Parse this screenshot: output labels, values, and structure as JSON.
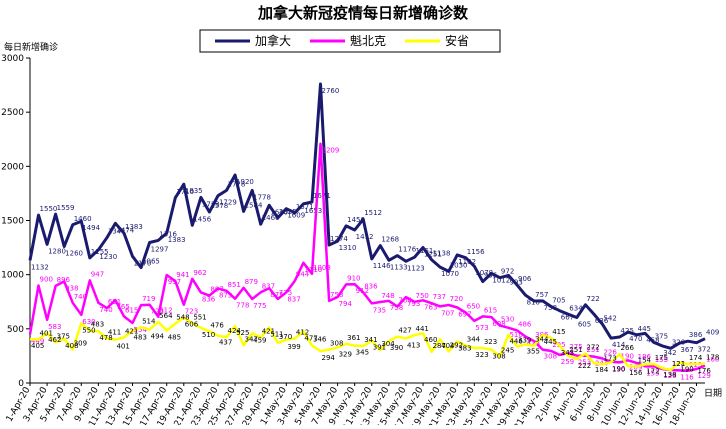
{
  "chart_data": {
    "type": "line",
    "title": "加拿大新冠疫情每日新增确诊数",
    "y_label": "每日新增确诊",
    "x_label": "日期",
    "categories": [
      "1-Apr-20",
      null,
      "3-Apr-20",
      null,
      "5-Apr-20",
      null,
      "7-Apr-20",
      null,
      "9-Apr-20",
      null,
      "11-Apr-20",
      null,
      "13-Apr-20",
      null,
      "15-Apr-20",
      null,
      "17-Apr-20",
      null,
      "19-Apr-20",
      null,
      "21-Apr-20",
      null,
      "23-Apr-20",
      null,
      "25-Apr-20",
      null,
      "27-Apr-20",
      null,
      "29-Apr-20",
      null,
      "1-May-20",
      null,
      "3-May-20",
      null,
      "5-May-20",
      null,
      "7-May-20",
      null,
      "9-May-20",
      null,
      "11-May-20",
      null,
      "13-May-20",
      null,
      "15-May-20",
      null,
      "17-May-20",
      null,
      "19-May-20",
      null,
      "21-May-20",
      null,
      "23-May-20",
      null,
      "25-May-20",
      null,
      "27-May-20",
      null,
      "29-May-20",
      null,
      "31-May-20",
      null,
      "2-Jun-20",
      null,
      "4-Jun-20",
      null,
      "6-Jun-20",
      null,
      "8-Jun-20",
      null,
      "10-Jun-20",
      null,
      "12-Jun-20",
      null,
      "14-Jun-20",
      null,
      "16-Jun-20",
      null,
      "18-Jun-20",
      null
    ],
    "series": [
      {
        "name": "加拿大",
        "color": "#1a1a6e",
        "values": [
          1132,
          1550,
          1280,
          1559,
          1260,
          1460,
          1494,
          1155,
          1230,
          1341,
          1474,
          1383,
          1170,
          1065,
          1297,
          1316,
          1383,
          1710,
          1835,
          1456,
          1713,
          1578,
          1729,
          1778,
          1920,
          1584,
          1778,
          1466,
          1640,
          1525,
          1609,
          1571,
          1653,
          1671,
          2760,
          1274,
          1310,
          1450,
          1412,
          1512,
          1146,
          1268,
          1133,
          1176,
          1123,
          1161,
          1251,
          1138,
          1070,
          1030,
          1182,
          1156,
          1078,
          936,
          1012,
          972,
          993,
          906,
          810,
          757,
          758,
          705,
          667,
          634,
          605,
          722,
          636,
          542,
          414,
          425,
          470,
          445,
          458,
          375,
          342,
          320,
          367,
          386,
          372,
          409
        ]
      },
      {
        "name": "魁北克",
        "color": "#ff00ff",
        "values": [
          449,
          900,
          583,
          896,
          938,
          740,
          630,
          947,
          740,
          691,
          765,
          615,
          554,
          719,
          723,
          612,
          997,
          941,
          723,
          962,
          836,
          807,
          873,
          851,
          778,
          879,
          775,
          837,
          875,
          775,
          837,
          944,
          1110,
          1008,
          2209,
          758,
          794,
          910,
          912,
          836,
          735,
          748,
          758,
          706,
          793,
          750,
          763,
          737,
          707,
          720,
          697,
          650,
          573,
          615,
          608,
          530,
          510,
          486,
          428,
          386,
          308,
          295,
          259,
          275,
          253,
          251,
          244,
          226,
          196,
          190,
          209,
          186,
          153,
          155,
          129,
          120,
          116,
          113,
          129,
          160
        ]
      },
      {
        "name": "安省",
        "color": "#ffff00",
        "values": [
          405,
          401,
          462,
          375,
          408,
          309,
          550,
          483,
          478,
          411,
          401,
          421,
          483,
          514,
          494,
          564,
          485,
          548,
          606,
          551,
          510,
          476,
          437,
          424,
          525,
          347,
          459,
          421,
          511,
          370,
          399,
          412,
          477,
          346,
          294,
          308,
          329,
          361,
          345,
          341,
          391,
          304,
          390,
          427,
          413,
          441,
          460,
          287,
          404,
          292,
          383,
          344,
          323,
          323,
          308,
          245,
          446,
          339,
          355,
          344,
          445,
          415,
          343,
          251,
          222,
          272,
          184,
          173,
          190,
          266,
          156,
          154,
          172,
          175,
          138,
          121,
          190,
          174,
          176,
          178
        ]
      }
    ],
    "ylim": [
      0,
      3000
    ],
    "yticks": [
      0,
      500,
      1000,
      1500,
      2000,
      2500,
      3000
    ],
    "grid": false
  }
}
